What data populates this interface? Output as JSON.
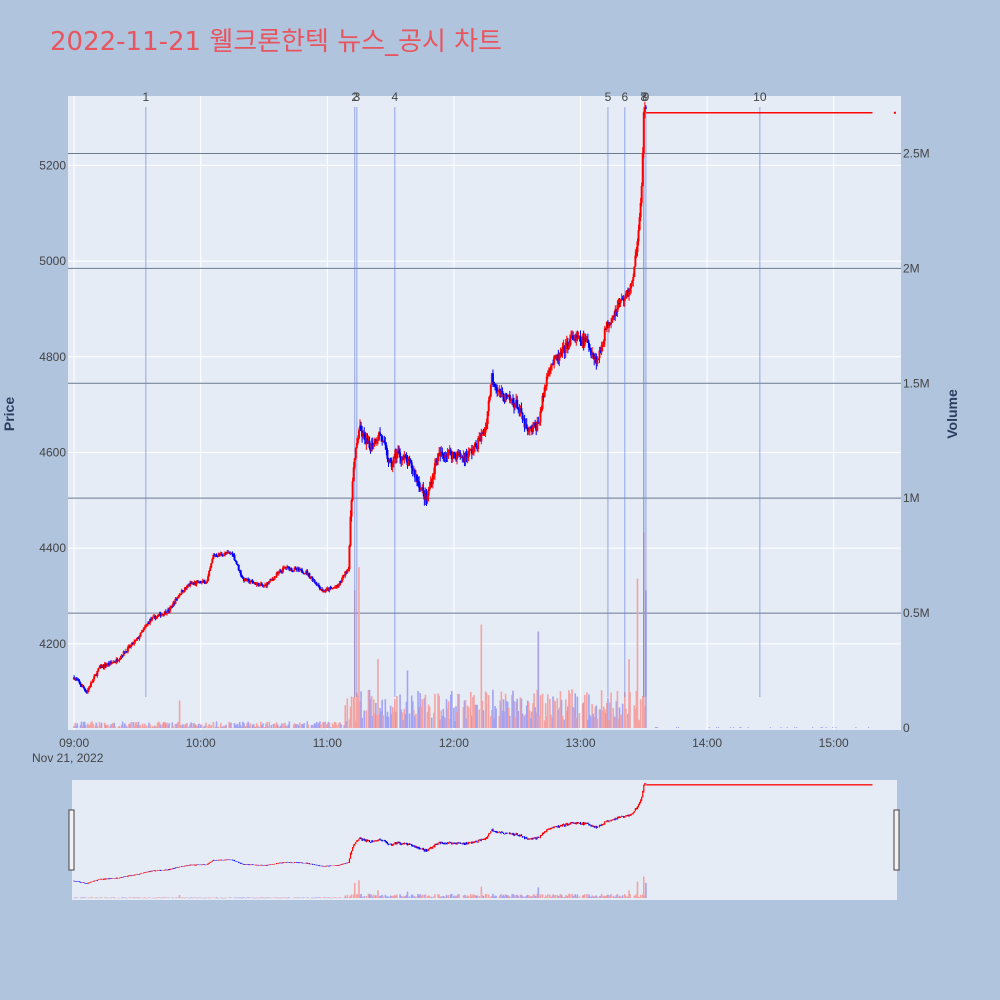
{
  "title": "2022-11-21 웰크론한텍 뉴스_공시 차트",
  "colors": {
    "up": "#ff0000",
    "down": "#0000ff",
    "background": "#b0c4de",
    "plot_bg": "#e5ecf6",
    "title": "#e8555f"
  },
  "chart_data": {
    "type": "candlestick",
    "date_label": "Nov 21, 2022",
    "yaxis_left": {
      "title": "Price",
      "range": [
        4020,
        5345
      ],
      "ticks": [
        4200,
        4400,
        4600,
        4800,
        5000,
        5200
      ]
    },
    "yaxis_right": {
      "title": "Volume",
      "range": [
        0,
        2.75
      ],
      "unit": "M",
      "ticks": [
        0,
        0.5,
        1,
        1.5,
        2,
        2.5
      ],
      "tick_labels": [
        "0",
        "0.5M",
        "1M",
        "1.5M",
        "2M",
        "2.5M"
      ]
    },
    "xaxis": {
      "range": [
        "08:59",
        "15:30"
      ],
      "ticks": [
        "09:00",
        "10:00",
        "11:00",
        "12:00",
        "13:00",
        "14:00",
        "15:00"
      ]
    },
    "grid": true,
    "price_keypoints": [
      [
        "09:00",
        4130
      ],
      [
        "09:06",
        4100
      ],
      [
        "09:12",
        4150
      ],
      [
        "09:20",
        4165
      ],
      [
        "09:30",
        4210
      ],
      [
        "09:36",
        4250
      ],
      [
        "09:45",
        4270
      ],
      [
        "09:50",
        4305
      ],
      [
        "09:55",
        4325
      ],
      [
        "10:03",
        4330
      ],
      [
        "10:06",
        4385
      ],
      [
        "10:15",
        4390
      ],
      [
        "10:20",
        4335
      ],
      [
        "10:30",
        4320
      ],
      [
        "10:40",
        4360
      ],
      [
        "10:50",
        4350
      ],
      [
        "10:58",
        4310
      ],
      [
        "11:05",
        4320
      ],
      [
        "11:10",
        4360
      ],
      [
        "11:12",
        4550
      ],
      [
        "11:15",
        4650
      ],
      [
        "11:20",
        4610
      ],
      [
        "11:25",
        4640
      ],
      [
        "11:30",
        4570
      ],
      [
        "11:33",
        4600
      ],
      [
        "11:40",
        4570
      ],
      [
        "11:47",
        4500
      ],
      [
        "11:52",
        4590
      ],
      [
        "11:57",
        4600
      ],
      [
        "12:05",
        4590
      ],
      [
        "12:10",
        4610
      ],
      [
        "12:15",
        4650
      ],
      [
        "12:18",
        4760
      ],
      [
        "12:22",
        4720
      ],
      [
        "12:30",
        4700
      ],
      [
        "12:35",
        4640
      ],
      [
        "12:40",
        4660
      ],
      [
        "12:45",
        4780
      ],
      [
        "12:50",
        4800
      ],
      [
        "12:56",
        4840
      ],
      [
        "13:03",
        4830
      ],
      [
        "13:08",
        4790
      ],
      [
        "13:12",
        4860
      ],
      [
        "13:18",
        4910
      ],
      [
        "13:22",
        4930
      ],
      [
        "13:25",
        4960
      ],
      [
        "13:27",
        5050
      ],
      [
        "13:29",
        5150
      ],
      [
        "13:30",
        5310
      ],
      [
        "15:18",
        5310
      ]
    ],
    "volume_spikes": [
      [
        "09:50",
        0.12
      ],
      [
        "11:10",
        0.45
      ],
      [
        "11:13",
        0.6
      ],
      [
        "11:15",
        0.7
      ],
      [
        "11:24",
        0.3
      ],
      [
        "11:38",
        0.25
      ],
      [
        "12:13",
        0.45
      ],
      [
        "12:40",
        0.42
      ],
      [
        "13:23",
        0.3
      ],
      [
        "13:27",
        0.65
      ],
      [
        "13:30",
        0.85
      ],
      [
        "13:31",
        0.6
      ]
    ],
    "events": [
      {
        "label": "1",
        "time": "09:34"
      },
      {
        "label": "2",
        "time": "11:13"
      },
      {
        "label": "3",
        "time": "11:14"
      },
      {
        "label": "4",
        "time": "11:32"
      },
      {
        "label": "5",
        "time": "13:13"
      },
      {
        "label": "6",
        "time": "13:21"
      },
      {
        "label": "7",
        "time": "13:30"
      },
      {
        "label": "8",
        "time": "13:30"
      },
      {
        "label": "9",
        "time": "13:31"
      },
      {
        "label": "10",
        "time": "14:25"
      }
    ],
    "rangeslider": true
  }
}
